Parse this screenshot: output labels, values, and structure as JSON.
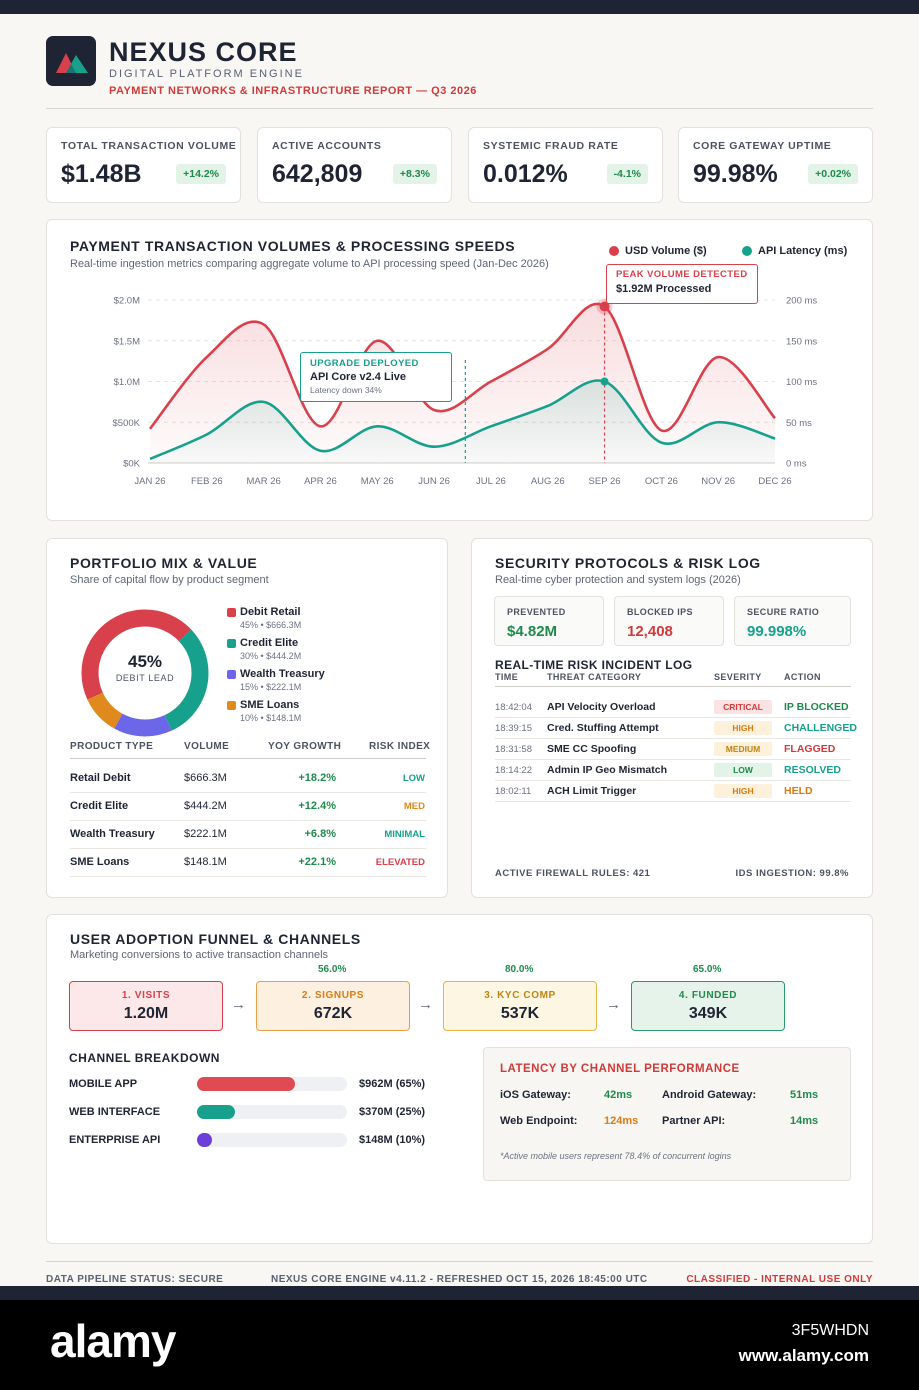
{
  "header": {
    "brand": "NEXUS CORE",
    "subtitle": "DIGITAL PLATFORM ENGINE",
    "report": "PAYMENT NETWORKS & INFRASTRUCTURE REPORT — Q3 2026"
  },
  "kpis": [
    {
      "label": "TOTAL TRANSACTION VOLUME",
      "value": "$1.48B",
      "delta": "+14.2%"
    },
    {
      "label": "ACTIVE ACCOUNTS",
      "value": "642,809",
      "delta": "+8.3%"
    },
    {
      "label": "SYSTEMIC FRAUD RATE",
      "value": "0.012%",
      "delta": "-4.1%"
    },
    {
      "label": "CORE GATEWAY UPTIME",
      "value": "99.98%",
      "delta": "+0.02%"
    }
  ],
  "main_chart": {
    "title": "PAYMENT TRANSACTION VOLUMES & PROCESSING SPEEDS",
    "subtitle": "Real-time ingestion metrics comparing aggregate volume to API processing speed (Jan-Dec 2026)",
    "legend_usd": "USD Volume ($)",
    "legend_api": "API Latency (ms)",
    "annotation_peak_title": "PEAK VOLUME DETECTED",
    "annotation_peak_text": "$1.92M Processed",
    "annotation_upgrade_title": "UPGRADE DEPLOYED",
    "annotation_upgrade_text": "API Core v2.4 Live",
    "annotation_upgrade_note": "Latency down 34%",
    "colors": {
      "usd": "#d8404c",
      "api": "#17a08c"
    }
  },
  "chart_data": {
    "type": "line",
    "categories": [
      "JAN 26",
      "FEB 26",
      "MAR 26",
      "APR 26",
      "MAY 26",
      "JUN 26",
      "JUL 26",
      "AUG 26",
      "SEP 26",
      "OCT 26",
      "NOV 26",
      "DEC 26"
    ],
    "series": [
      {
        "name": "USD Volume ($)",
        "axis": "left",
        "values": [
          420000,
          1300000,
          1700000,
          450000,
          1500000,
          650000,
          1000000,
          1400000,
          1920000,
          400000,
          1300000,
          550000
        ]
      },
      {
        "name": "API Latency (ms)",
        "axis": "right",
        "values": [
          5,
          35,
          75,
          15,
          45,
          20,
          45,
          70,
          100,
          25,
          50,
          30
        ]
      }
    ],
    "y_left_ticks": [
      "$0K",
      "$500K",
      "$1.0M",
      "$1.5M",
      "$2.0M"
    ],
    "y_right_ticks": [
      "0 ms",
      "50 ms",
      "100 ms",
      "150 ms",
      "200 ms"
    ],
    "ylim_left": [
      0,
      2000000
    ],
    "ylim_right": [
      0,
      200
    ],
    "grid": true,
    "legend": "top-right"
  },
  "portfolio": {
    "title": "PORTFOLIO MIX & VALUE",
    "subtitle": "Share of capital flow by product segment",
    "center_value": "45%",
    "center_label": "DEBIT LEAD",
    "segments": [
      {
        "name": "Debit Retail",
        "detail": "45% • $666.3M",
        "share": 45,
        "color": "#d8404c"
      },
      {
        "name": "Credit Elite",
        "detail": "30% • $444.2M",
        "share": 30,
        "color": "#17a08c"
      },
      {
        "name": "Wealth Treasury",
        "detail": "15% • $222.1M",
        "share": 15,
        "color": "#6c67e8"
      },
      {
        "name": "SME Loans",
        "detail": "10% • $148.1M",
        "share": 10,
        "color": "#e08a1e"
      }
    ],
    "columns": [
      "PRODUCT TYPE",
      "VOLUME",
      "YOY GROWTH",
      "RISK INDEX"
    ],
    "rows": [
      {
        "type": "Retail Debit",
        "volume": "$666.3M",
        "growth": "+18.2%",
        "risk": "LOW",
        "risk_color": "#17a08c"
      },
      {
        "type": "Credit Elite",
        "volume": "$444.2M",
        "growth": "+12.4%",
        "risk": "MED",
        "risk_color": "#e08a1e"
      },
      {
        "type": "Wealth Treasury",
        "volume": "$222.1M",
        "growth": "+6.8%",
        "risk": "MINIMAL",
        "risk_color": "#17a08c"
      },
      {
        "type": "SME Loans",
        "volume": "$148.1M",
        "growth": "+22.1%",
        "risk": "ELEVATED",
        "risk_color": "#d8404c"
      }
    ]
  },
  "security": {
    "title": "SECURITY PROTOCOLS & RISK LOG",
    "subtitle": "Real-time cyber protection and system logs (2026)",
    "stats": [
      {
        "label": "PREVENTED",
        "value": "$4.82M",
        "color": "#1f8a4c"
      },
      {
        "label": "BLOCKED IPS",
        "value": "12,408",
        "color": "#d13a3a"
      },
      {
        "label": "SECURE RATIO",
        "value": "99.998%",
        "color": "#17a08c"
      }
    ],
    "log_title": "REAL-TIME RISK INCIDENT LOG",
    "columns": [
      "TIME",
      "THREAT CATEGORY",
      "SEVERITY",
      "ACTION"
    ],
    "incidents": [
      {
        "time": "18:42:04",
        "threat": "API Velocity Overload",
        "severity": "CRITICAL",
        "sev_bg": "#fbe3e4",
        "sev_color": "#d13a3a",
        "action": "IP BLOCKED",
        "action_color": "#1f8a4c"
      },
      {
        "time": "18:39:15",
        "threat": "Cred. Stuffing Attempt",
        "severity": "HIGH",
        "sev_bg": "#fdf1dc",
        "sev_color": "#d97a12",
        "action": "CHALLENGED",
        "action_color": "#17a08c"
      },
      {
        "time": "18:31:58",
        "threat": "SME CC Spoofing",
        "severity": "MEDIUM",
        "sev_bg": "#fdf1dc",
        "sev_color": "#c08412",
        "action": "FLAGGED",
        "action_color": "#d13a3a"
      },
      {
        "time": "18:14:22",
        "threat": "Admin IP Geo Mismatch",
        "severity": "LOW",
        "sev_bg": "#e3f3e8",
        "sev_color": "#1f8a4c",
        "action": "RESOLVED",
        "action_color": "#17a08c"
      },
      {
        "time": "18:02:11",
        "threat": "ACH Limit Trigger",
        "severity": "HIGH",
        "sev_bg": "#fdf1dc",
        "sev_color": "#d97a12",
        "action": "HELD",
        "action_color": "#d97a12"
      }
    ],
    "footer_left": "ACTIVE FIREWALL RULES: 421",
    "footer_right": "IDS INGESTION: 99.8%"
  },
  "funnel": {
    "title": "USER ADOPTION FUNNEL & CHANNELS",
    "subtitle": "Marketing conversions to active transaction channels",
    "stages": [
      {
        "label": "1. VISITS",
        "value": "1.20M",
        "bg": "#fce8e8",
        "border": "#d8404c",
        "text": "#d8404c"
      },
      {
        "label": "2. SIGNUPS",
        "value": "672K",
        "bg": "#fdf0e0",
        "border": "#e8a04a",
        "text": "#d97a12"
      },
      {
        "label": "3. KYC COMP",
        "value": "537K",
        "bg": "#fdf6e2",
        "border": "#e8b54a",
        "text": "#c08412"
      },
      {
        "label": "4. FUNDED",
        "value": "349K",
        "bg": "#e6f3ea",
        "border": "#2a9a6a",
        "text": "#1f8a4c"
      }
    ],
    "conversions": [
      "56.0%",
      "80.0%",
      "65.0%"
    ],
    "arrow": "→",
    "channel_title": "CHANNEL BREAKDOWN",
    "channels": [
      {
        "name": "MOBILE APP",
        "value": "$962M (65%)",
        "share": 0.65,
        "color": "#e04a52"
      },
      {
        "name": "WEB INTERFACE",
        "value": "$370M (25%)",
        "share": 0.25,
        "color": "#17a08c"
      },
      {
        "name": "ENTERPRISE API",
        "value": "$148M (10%)",
        "share": 0.1,
        "color": "#6c3fd8"
      }
    ],
    "latency_title": "LATENCY BY CHANNEL PERFORMANCE",
    "latency": [
      {
        "label": "iOS Gateway:",
        "value": "42ms",
        "color": "#1f8a4c"
      },
      {
        "label": "Android Gateway:",
        "value": "51ms",
        "color": "#1f8a4c"
      },
      {
        "label": "Web Endpoint:",
        "value": "124ms",
        "color": "#d97a12"
      },
      {
        "label": "Partner API:",
        "value": "14ms",
        "color": "#1f8a4c"
      }
    ],
    "latency_note": "*Active mobile users represent 78.4% of concurrent logins"
  },
  "footer": {
    "left": "DATA PIPELINE STATUS: SECURE",
    "center": "NEXUS CORE ENGINE v4.11.2 - REFRESHED OCT 15, 2026 18:45:00 UTC",
    "right": "CLASSIFIED - INTERNAL USE ONLY"
  },
  "stock": {
    "logo": "alamy",
    "id": "3F5WHDN",
    "url": "www.alamy.com"
  }
}
